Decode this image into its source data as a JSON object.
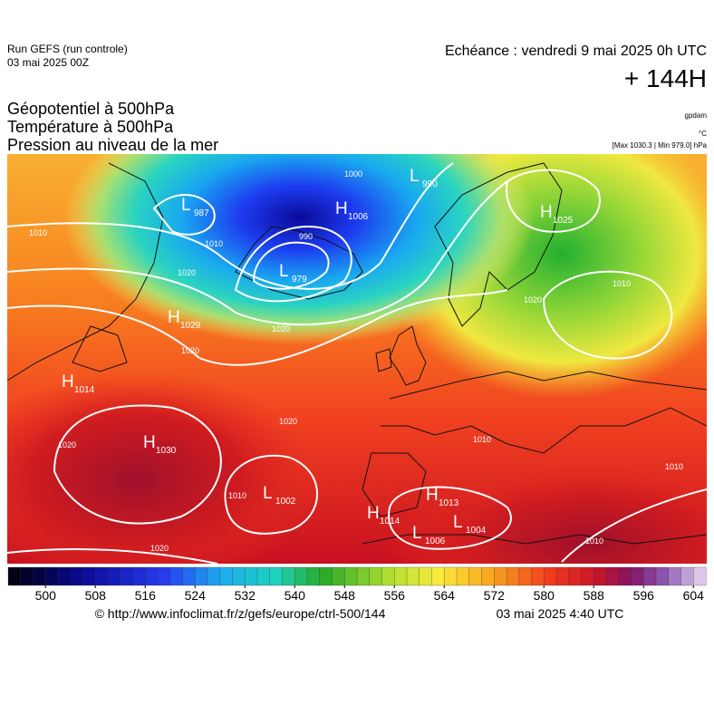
{
  "header": {
    "run": "Run GEFS (run controle)",
    "date": "03 mai 2025 00Z",
    "echeance": "Echéance : vendredi 9 mai 2025 0h UTC",
    "lead": "+ 144H"
  },
  "fields": [
    "Géopotentiel à 500hPa",
    "Température à 500hPa",
    "Pression au niveau de la mer"
  ],
  "units": {
    "geopotential": "gpdam",
    "temperature": "°C",
    "pressure": "[Max 1030.3 | Min 979.0] hPa"
  },
  "centers": [
    {
      "type": "L",
      "value": "987"
    },
    {
      "type": "H",
      "value": "1006"
    },
    {
      "type": "L",
      "value": "990"
    },
    {
      "type": "L",
      "value": "979"
    },
    {
      "type": "H",
      "value": "1029"
    },
    {
      "type": "H",
      "value": "1025"
    },
    {
      "type": "H",
      "value": "1014"
    },
    {
      "type": "H",
      "value": "1030"
    },
    {
      "type": "L",
      "value": "1002"
    },
    {
      "type": "H",
      "value": "1013"
    },
    {
      "type": "H",
      "value": "1014"
    },
    {
      "type": "L",
      "value": "1004"
    },
    {
      "type": "L",
      "value": "1006"
    }
  ],
  "isobar_labels": [
    "1010",
    "1010",
    "1020",
    "1020",
    "1020",
    "1010",
    "1020",
    "1000",
    "990",
    "1020",
    "1020",
    "1010",
    "1020",
    "1010",
    "1010",
    "1010"
  ],
  "colorbar": {
    "ticks": [
      500,
      508,
      516,
      524,
      532,
      540,
      548,
      556,
      564,
      572,
      580,
      588,
      596,
      604
    ],
    "range": [
      494,
      606
    ]
  },
  "footer": {
    "source": "© http://www.infoclimat.fr/z/gefs/europe/ctrl-500/144",
    "issued": "03 mai 2025  4:40 UTC"
  }
}
